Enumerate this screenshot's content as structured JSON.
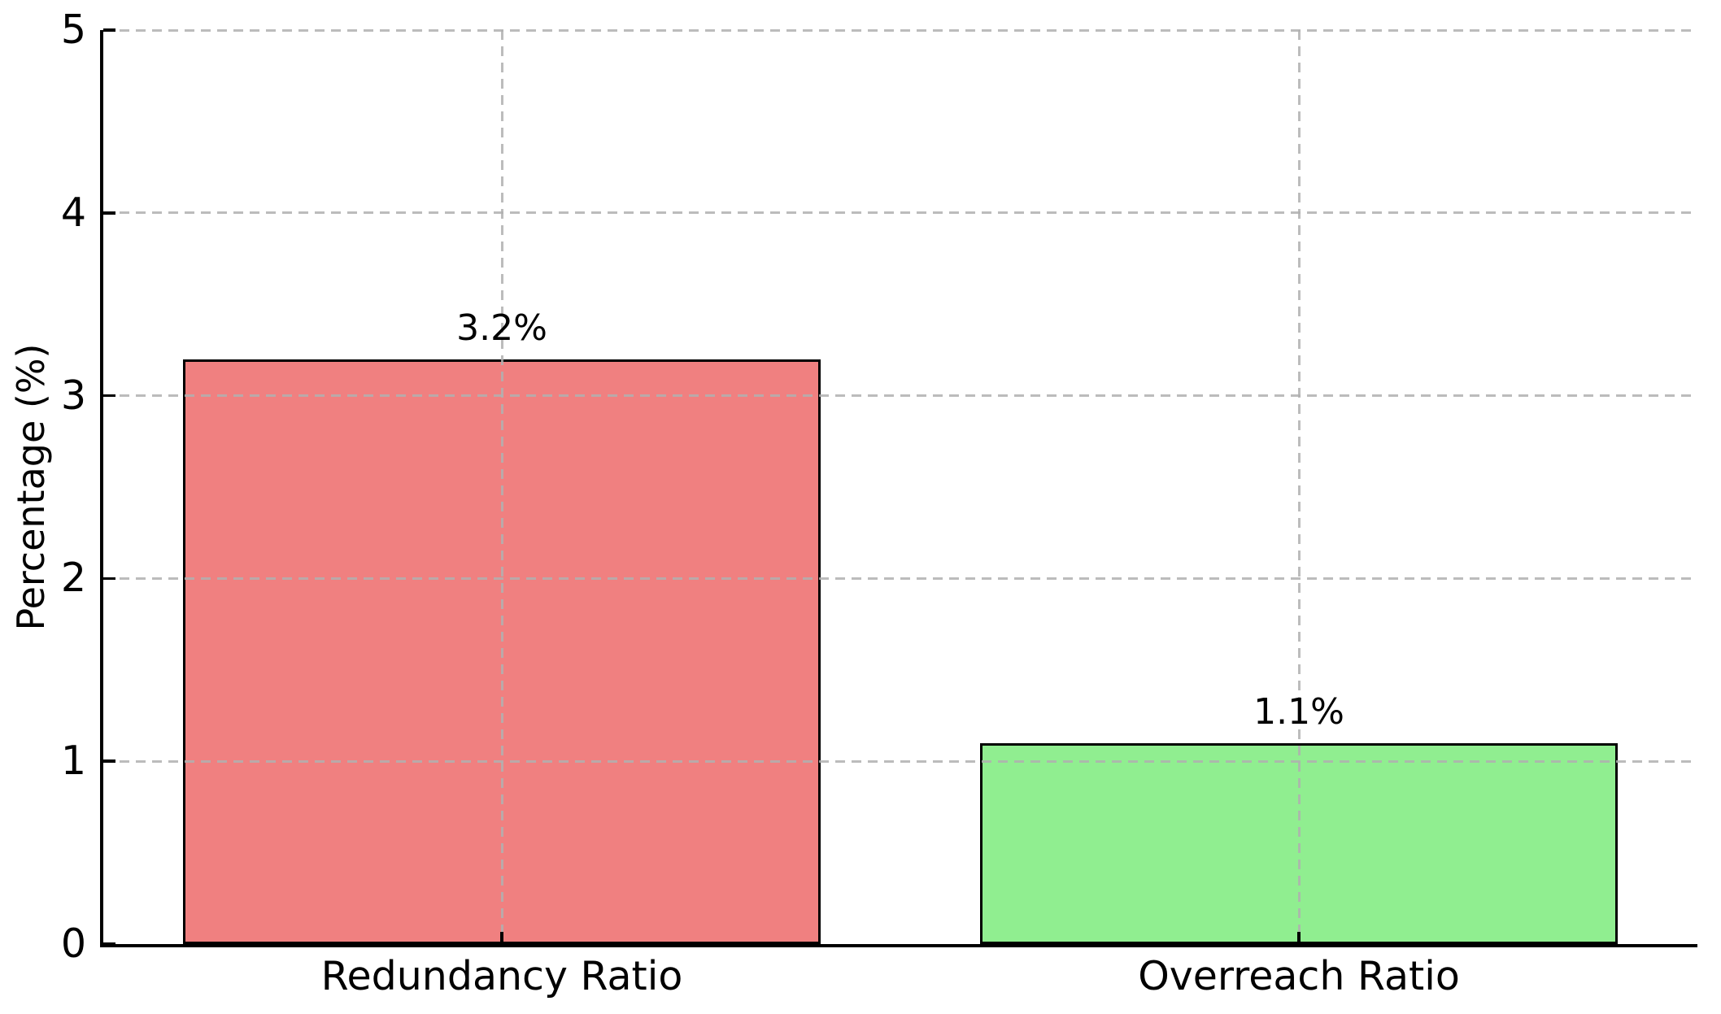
{
  "figure": {
    "background": "#ffffff"
  },
  "chart_data": {
    "type": "bar",
    "title": "",
    "xlabel": "",
    "ylabel": "Percentage (%)",
    "categories": [
      "Redundancy Ratio",
      "Overreach Ratio"
    ],
    "values": [
      3.2,
      1.1
    ],
    "value_labels": [
      "3.2%",
      "1.1%"
    ],
    "bar_colors": [
      "#f08080",
      "#90ee90"
    ],
    "bar_edge_color": "#000000",
    "bar_width_fraction": 0.8,
    "ylim": [
      0,
      5
    ],
    "yticks": [
      "0",
      "1",
      "2",
      "3",
      "4",
      "5"
    ],
    "grid": true,
    "grid_axis": "both",
    "grid_linestyle": "dashed",
    "grid_color": "#b0b0b0",
    "legend_position": "none",
    "axis_color": "#000000",
    "tick_direction": "in"
  }
}
